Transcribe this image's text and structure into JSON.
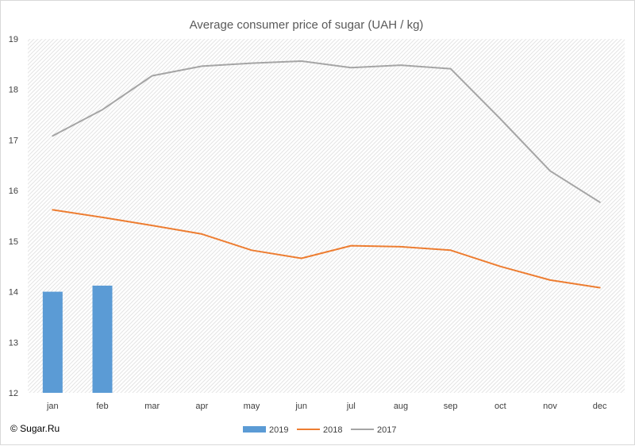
{
  "chart_data": {
    "type": "bar",
    "title": "Average consumer price of sugar (UAH / kg)",
    "xlabel": "",
    "ylabel": "",
    "categories": [
      "jan",
      "feb",
      "mar",
      "apr",
      "may",
      "jun",
      "jul",
      "aug",
      "sep",
      "oct",
      "nov",
      "dec"
    ],
    "ylim": [
      12,
      19
    ],
    "yticks": [
      12,
      13,
      14,
      15,
      16,
      17,
      18,
      19
    ],
    "grid": false,
    "legend_position": "bottom",
    "series": [
      {
        "name": "2019",
        "type": "bar",
        "color": "#5b9bd5",
        "values": [
          14.0,
          14.12,
          null,
          null,
          null,
          null,
          null,
          null,
          null,
          null,
          null,
          null
        ]
      },
      {
        "name": "2018",
        "type": "line",
        "color": "#ed7d31",
        "values": [
          15.62,
          15.47,
          15.31,
          15.14,
          14.82,
          14.66,
          14.91,
          14.89,
          14.82,
          14.5,
          14.23,
          14.08
        ]
      },
      {
        "name": "2017",
        "type": "line",
        "color": "#a5a5a5",
        "values": [
          17.08,
          17.6,
          18.27,
          18.46,
          18.52,
          18.56,
          18.43,
          18.48,
          18.41,
          17.42,
          16.39,
          15.77
        ]
      }
    ]
  },
  "footer": {
    "copyright": "© Sugar.Ru"
  }
}
